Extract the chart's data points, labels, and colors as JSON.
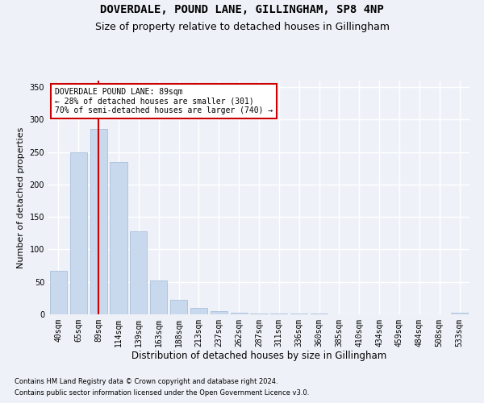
{
  "title": "DOVERDALE, POUND LANE, GILLINGHAM, SP8 4NP",
  "subtitle": "Size of property relative to detached houses in Gillingham",
  "xlabel": "Distribution of detached houses by size in Gillingham",
  "ylabel": "Number of detached properties",
  "categories": [
    "40sqm",
    "65sqm",
    "89sqm",
    "114sqm",
    "139sqm",
    "163sqm",
    "188sqm",
    "213sqm",
    "237sqm",
    "262sqm",
    "287sqm",
    "311sqm",
    "336sqm",
    "360sqm",
    "385sqm",
    "410sqm",
    "434sqm",
    "459sqm",
    "484sqm",
    "508sqm",
    "533sqm"
  ],
  "values": [
    67,
    250,
    285,
    235,
    128,
    52,
    22,
    10,
    5,
    2,
    1,
    1,
    1,
    1,
    0,
    0,
    0,
    0,
    0,
    0,
    3
  ],
  "bar_color": "#c9d9ed",
  "bar_edge_color": "#a0b8d8",
  "vline_x": 2,
  "vline_color": "#cc0000",
  "ylim": [
    0,
    360
  ],
  "yticks": [
    0,
    50,
    100,
    150,
    200,
    250,
    300,
    350
  ],
  "annotation_title": "DOVERDALE POUND LANE: 89sqm",
  "annotation_line1": "← 28% of detached houses are smaller (301)",
  "annotation_line2": "70% of semi-detached houses are larger (740) →",
  "footnote1": "Contains HM Land Registry data © Crown copyright and database right 2024.",
  "footnote2": "Contains public sector information licensed under the Open Government Licence v3.0.",
  "background_color": "#eef2f8",
  "plot_bg_color": "#eef2f8",
  "grid_color": "#ffffff",
  "title_fontsize": 10,
  "subtitle_fontsize": 9,
  "xlabel_fontsize": 8.5,
  "ylabel_fontsize": 8,
  "tick_fontsize": 7,
  "footnote_fontsize": 6
}
